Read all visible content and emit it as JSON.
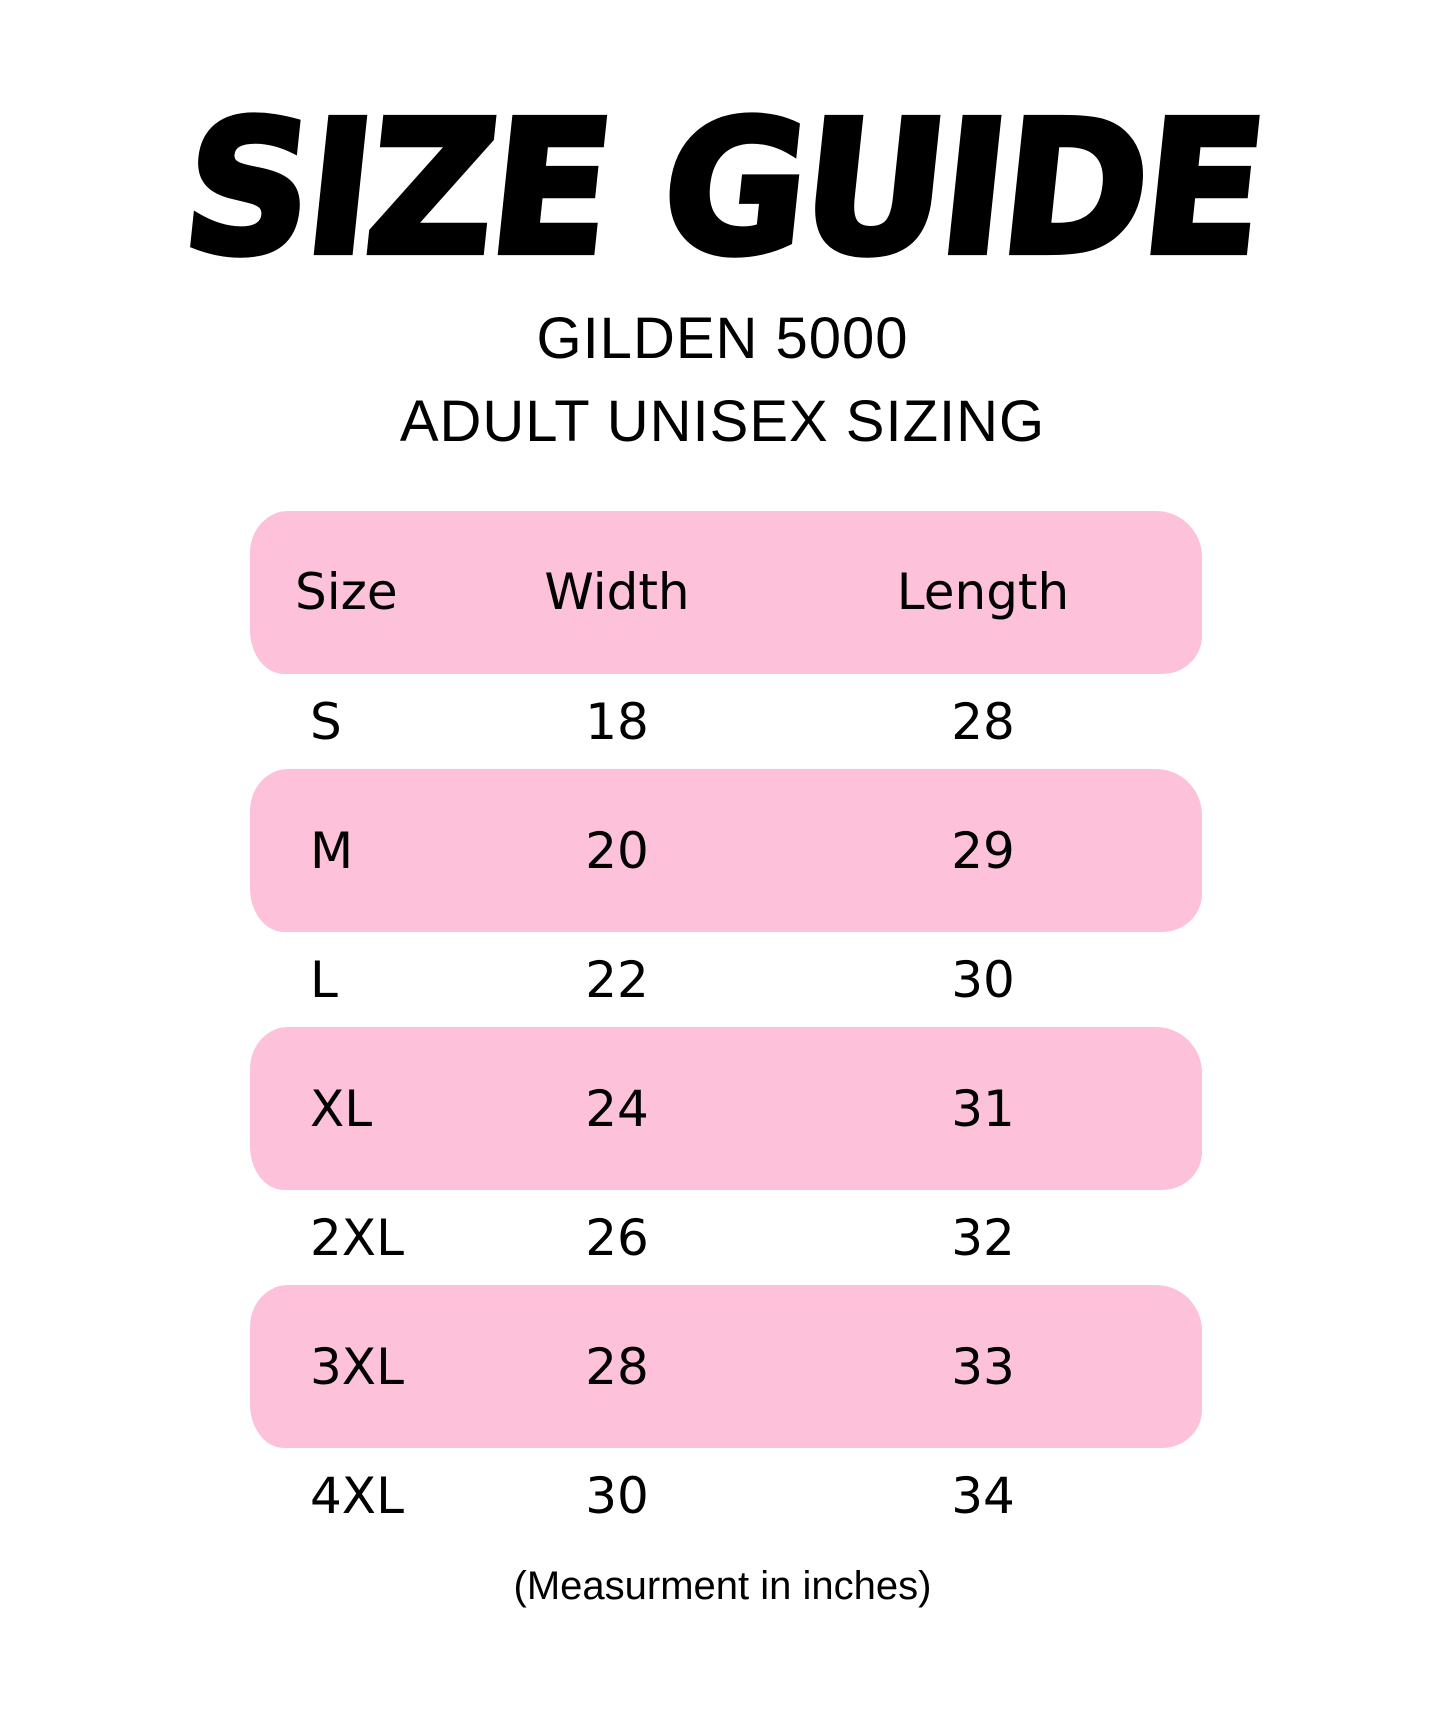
{
  "title": "SIZE GUIDE",
  "subtitle_line1": "GILDEN 5000",
  "subtitle_line2": "ADULT UNISEX SIZING",
  "accent_color": "#fdc1d9",
  "table": {
    "headers": [
      "Size",
      "Width",
      "Length"
    ],
    "rows": [
      [
        "S",
        "18",
        "28"
      ],
      [
        "M",
        "20",
        "29"
      ],
      [
        "L",
        "22",
        "30"
      ],
      [
        "XL",
        "24",
        "31"
      ],
      [
        "2XL",
        "26",
        "32"
      ],
      [
        "3XL",
        "28",
        "33"
      ],
      [
        "4XL",
        "30",
        "34"
      ]
    ]
  },
  "footnote": "(Measurment in inches)"
}
